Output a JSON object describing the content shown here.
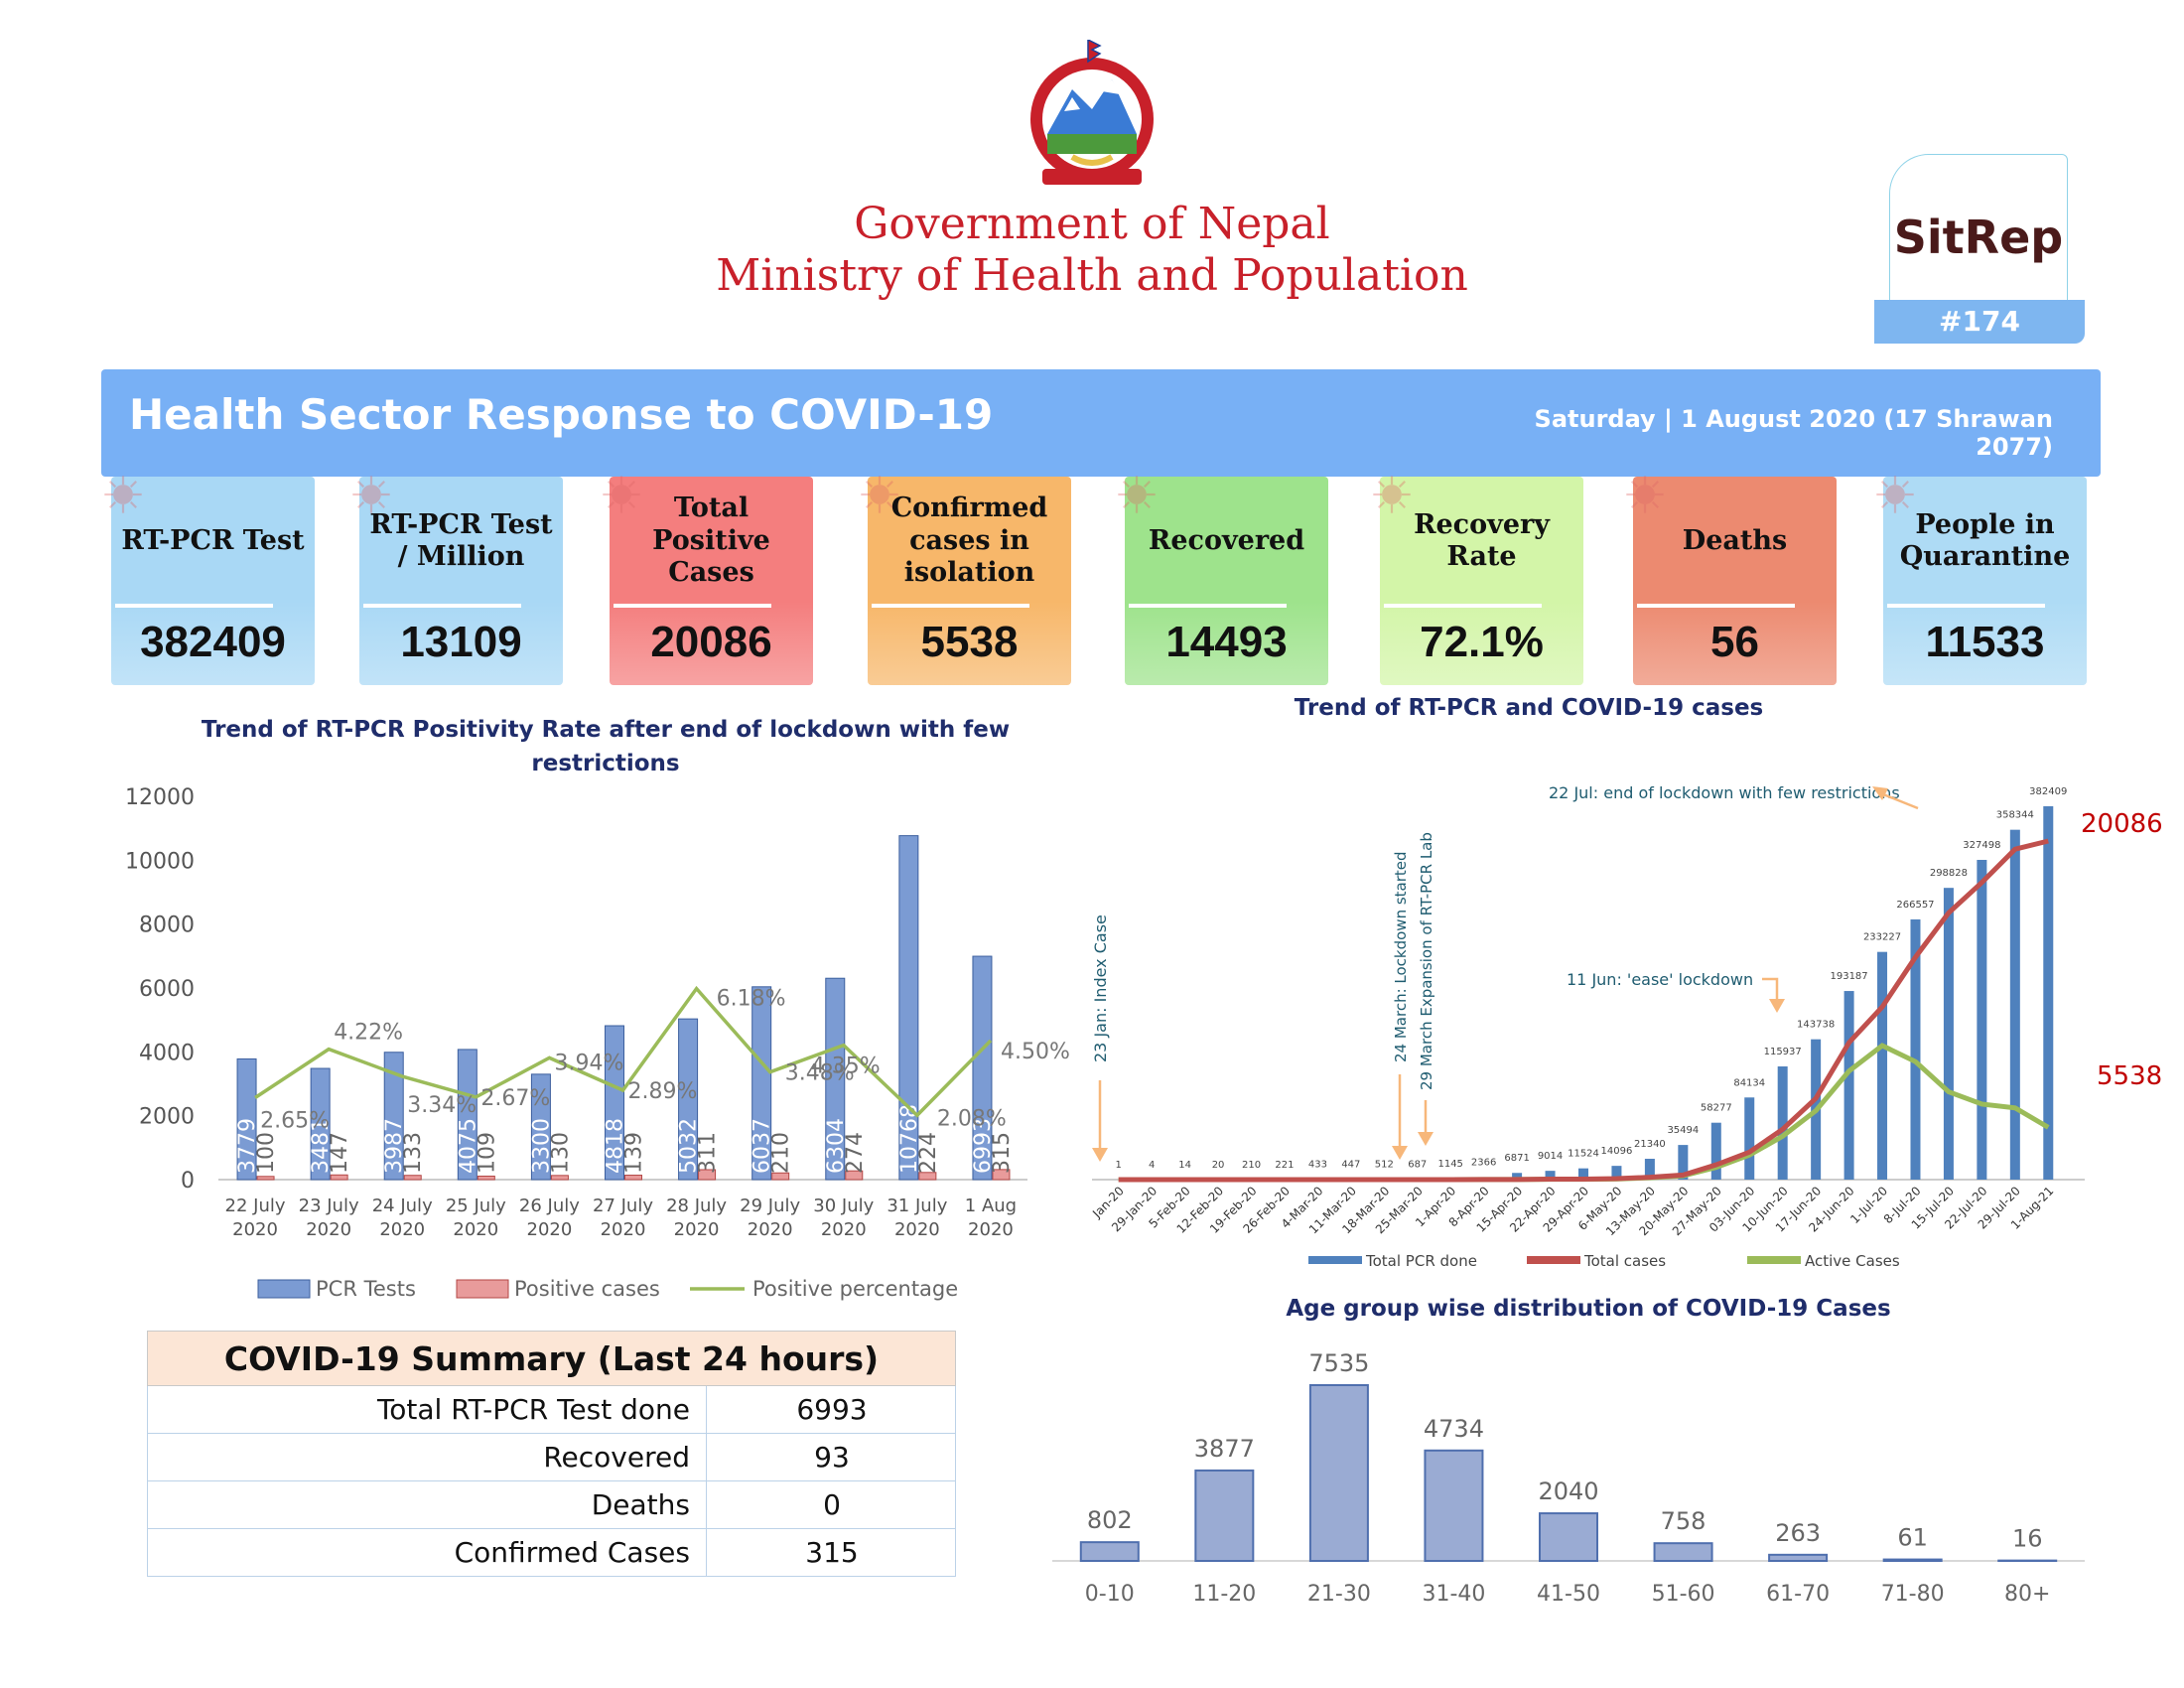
{
  "header": {
    "gov_line1": "Government of Nepal",
    "gov_line2": "Ministry of Health and Population",
    "sitrep_title": "SitRep",
    "sitrep_number": "#174"
  },
  "banner": {
    "title": "Health Sector Response to COVID-19",
    "date": "Saturday | 1 August 2020 (17 Shrawan 2077)"
  },
  "cards": [
    {
      "label": "RT-PCR Test",
      "value": "382409",
      "color": "#a9d8f5"
    },
    {
      "label": "RT-PCR Test / Million",
      "value": "13109",
      "color": "#a9d8f5"
    },
    {
      "label": "Total Positive Cases",
      "value": "20086",
      "color": "#f47e7e"
    },
    {
      "label": "Confirmed cases in isolation",
      "value": "5538",
      "color": "#f7b76a"
    },
    {
      "label": "Recovered",
      "value": "14493",
      "color": "#9ee38c"
    },
    {
      "label": "Recovery Rate",
      "value": "72.1%",
      "color": "#d3f5a8"
    },
    {
      "label": "Deaths",
      "value": "56",
      "color": "#ec8a70"
    },
    {
      "label": "People in Quarantine",
      "value": "11533",
      "color": "#aedbf5"
    }
  ],
  "chart_data": [
    {
      "type": "bar",
      "title": "Trend of RT-PCR Positivity Rate after end of lockdown with few restrictions",
      "categories": [
        "22 July 2020",
        "23 July 2020",
        "24 July 2020",
        "25 July 2020",
        "26 July 2020",
        "27 July 2020",
        "28 July 2020",
        "29 July 2020",
        "30 July 2020",
        "31 July 2020",
        "1 Aug 2020"
      ],
      "ylim": [
        0,
        12000
      ],
      "yticks": [
        "0",
        "2000",
        "4000",
        "6000",
        "8000",
        "10000",
        "12000"
      ],
      "series": [
        {
          "name": "PCR Tests",
          "values": [
            3779,
            3481,
            3987,
            4075,
            3300,
            4818,
            5032,
            6037,
            6304,
            10768,
            6993
          ],
          "color": "#5a7fbf"
        },
        {
          "name": "Positive cases",
          "values": [
            100,
            147,
            133,
            109,
            130,
            139,
            311,
            210,
            274,
            224,
            315
          ],
          "color": "#c0504d"
        },
        {
          "name": "Positive percentage",
          "values": [
            2.65,
            4.22,
            3.34,
            2.67,
            3.94,
            2.89,
            6.18,
            3.48,
            4.35,
            2.08,
            4.5
          ],
          "labels": [
            "2.65%",
            "4.22%",
            "3.34%",
            "2.67%",
            "3.94%",
            "2.89%",
            "6.18%",
            "3.48%",
            "4.35%",
            "2.08%",
            "4.50%"
          ],
          "color": "#9bbb59"
        }
      ],
      "legend": "bottom"
    },
    {
      "type": "bar",
      "title": "Trend of RT-PCR and COVID-19 cases",
      "categories": [
        "23-Jan-20",
        "29-Jan-20",
        "5-Feb-20",
        "12-Feb-20",
        "19-Feb-20",
        "26-Feb-20",
        "4-Mar-20",
        "11-Mar-20",
        "18-Mar-20",
        "25-Mar-20",
        "1-Apr-20",
        "8-Apr-20",
        "15-Apr-20",
        "22-Apr-20",
        "29-Apr-20",
        "6-May-20",
        "13-May-20",
        "20-May-20",
        "27-May-20",
        "03-Jun-20",
        "10-Jun-20",
        "17-Jun-20",
        "24-Jun-20",
        "1-Jul-20",
        "8-Jul-20",
        "15-Jul-20",
        "22-Jul-20",
        "29-Jul-20",
        "1-Aug-21"
      ],
      "category_labels": [
        "Jan-20",
        "29-Jan-20",
        "5-Feb-20",
        "12-Feb-20",
        "19-Feb-20",
        "26-Feb-20",
        "4-Mar-20",
        "11-Mar-20",
        "18-Mar-20",
        "25-Mar-20",
        "1-Apr-20",
        "8-Apr-20",
        "15-Apr-20",
        "22-Apr-20",
        "29-Apr-20",
        "6-May-20",
        "13-May-20",
        "20-May-20",
        "27-May-20",
        "03-Jun-20",
        "10-Jun-20",
        "17-Jun-20",
        "24-Jun-20",
        "1-Jul-20",
        "8-Jul-20",
        "15-Jul-20",
        "22-Jul-20",
        "29-Jul-20",
        "1-Aug-21"
      ],
      "ylim": [
        0,
        382409
      ],
      "series": [
        {
          "name": "Total PCR done",
          "values": [
            1,
            4,
            14,
            20,
            210,
            221,
            433,
            447,
            512,
            687,
            1145,
            2366,
            6871,
            9014,
            11524,
            14096,
            21340,
            35494,
            58277,
            84134,
            115937,
            143738,
            193187,
            233227,
            266557,
            298828,
            327498,
            358344,
            382409
          ],
          "labels": [
            "1",
            "4",
            "14",
            "20",
            "210",
            "221",
            "433",
            "447",
            "512",
            "687",
            "1145",
            "2366",
            "6871",
            "9014",
            "11524",
            "14096",
            "21340",
            "35494",
            "58277",
            "84134",
            "115937",
            "143738",
            "193187",
            "233227",
            "266557",
            "298828",
            "327498",
            "358344",
            "382409"
          ],
          "color": "#4f81bd"
        },
        {
          "name": "Total  cases",
          "values": [
            1,
            1,
            1,
            1,
            1,
            1,
            1,
            1,
            2,
            4,
            5,
            9,
            16,
            48,
            57,
            99,
            249,
            487,
            1572,
            2912,
            5335,
            8605,
            14519,
            18293,
            23567,
            28264,
            31480,
            35003,
            20086
          ],
          "color": "#c0504d"
        },
        {
          "name": "Active Cases",
          "values": [
            1,
            1,
            1,
            1,
            1,
            1,
            1,
            1,
            2,
            4,
            4,
            8,
            12,
            35,
            40,
            70,
            200,
            400,
            1300,
            2600,
            4600,
            7300,
            11500,
            14200,
            12500,
            9300,
            8000,
            7600,
            5538
          ],
          "color": "#9bbb59"
        }
      ],
      "end_labels": {
        "total": "20086",
        "active": "5538"
      },
      "annotations": [
        "23 Jan: Index Case",
        "24 March: Lockdown started",
        "29 March Expansion of RT-PCR Lab",
        "11 Jun: 'ease' lockdown",
        "22 Jul: end of lockdown with few restrictions"
      ],
      "legend": "bottom"
    },
    {
      "type": "bar",
      "title": "Age group wise distribution of COVID-19 Cases",
      "categories": [
        "0-10",
        "11-20",
        "21-30",
        "31-40",
        "41-50",
        "51-60",
        "61-70",
        "71-80",
        "80+"
      ],
      "values": [
        802,
        3877,
        7535,
        4734,
        2040,
        758,
        263,
        61,
        16
      ],
      "labels": [
        "802",
        "3877",
        "7535",
        "4734",
        "2040",
        "758",
        "263",
        "61",
        "16"
      ],
      "color": "#8ea2cb"
    }
  ],
  "summary": {
    "title": "COVID-19 Summary (Last 24 hours)",
    "rows": [
      {
        "key": "Total RT-PCR Test done",
        "value": "6993"
      },
      {
        "key": "Recovered",
        "value": "93"
      },
      {
        "key": "Deaths",
        "value": "0"
      },
      {
        "key": "Confirmed Cases",
        "value": "315"
      }
    ]
  }
}
